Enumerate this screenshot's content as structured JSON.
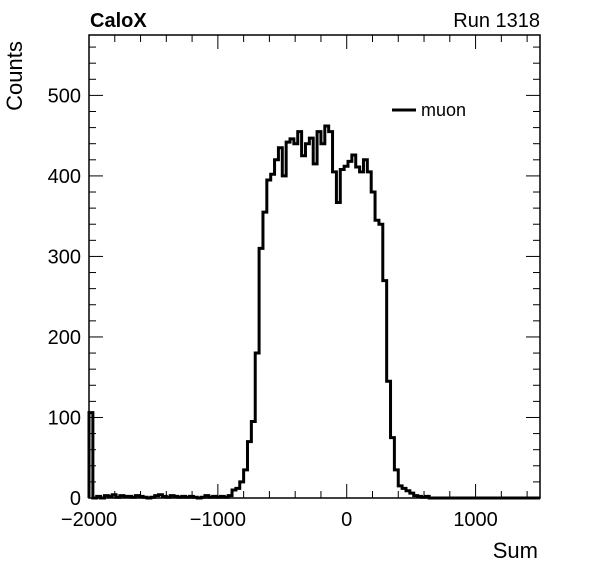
{
  "chart_data": {
    "type": "histogram",
    "header_left": "CaloX",
    "header_right": "Run 1318",
    "xlabel": "Sum",
    "ylabel": "Counts",
    "xlim": [
      -2000,
      1500
    ],
    "ylim": [
      0,
      575
    ],
    "xticks": [
      -2000,
      -1000,
      0,
      1000
    ],
    "xtick_labels": [
      "−2000",
      "−1000",
      "0",
      "1000"
    ],
    "yticks": [
      0,
      100,
      200,
      300,
      400,
      500
    ],
    "ytick_labels": [
      "0",
      "100",
      "200",
      "300",
      "400",
      "500"
    ],
    "legend": {
      "label": "muon",
      "position": "top-right"
    },
    "series": [
      {
        "name": "muon",
        "color": "#000000",
        "bin_edges": [
          -2000,
          -1970,
          -1940,
          -1910,
          -1880,
          -1850,
          -1820,
          -1790,
          -1760,
          -1730,
          -1700,
          -1670,
          -1640,
          -1610,
          -1580,
          -1550,
          -1520,
          -1490,
          -1460,
          -1430,
          -1400,
          -1370,
          -1340,
          -1310,
          -1280,
          -1250,
          -1220,
          -1190,
          -1160,
          -1130,
          -1100,
          -1070,
          -1040,
          -1010,
          -980,
          -950,
          -920,
          -890,
          -860,
          -830,
          -800,
          -770,
          -740,
          -710,
          -680,
          -650,
          -620,
          -590,
          -560,
          -530,
          -500,
          -470,
          -440,
          -410,
          -380,
          -350,
          -320,
          -290,
          -260,
          -230,
          -200,
          -170,
          -140,
          -110,
          -80,
          -50,
          -20,
          10,
          40,
          70,
          100,
          130,
          160,
          190,
          220,
          250,
          280,
          310,
          340,
          370,
          400,
          430,
          460,
          490,
          520,
          550,
          580,
          610,
          640,
          670,
          700,
          730,
          760,
          790,
          820,
          850,
          880,
          910,
          940,
          970,
          1000,
          1030,
          1060,
          1090,
          1120,
          1150,
          1180,
          1210,
          1240,
          1270,
          1300,
          1330,
          1360,
          1390,
          1420,
          1450,
          1480,
          1500
        ],
        "counts": [
          106,
          0,
          2,
          0,
          3,
          2,
          4,
          1,
          3,
          2,
          2,
          1,
          3,
          2,
          1,
          0,
          1,
          3,
          4,
          2,
          1,
          3,
          2,
          1,
          2,
          1,
          2,
          1,
          0,
          1,
          3,
          1,
          2,
          1,
          2,
          1,
          3,
          10,
          12,
          20,
          35,
          70,
          95,
          180,
          310,
          355,
          395,
          402,
          420,
          435,
          400,
          442,
          446,
          440,
          455,
          425,
          440,
          447,
          415,
          455,
          440,
          462,
          455,
          405,
          367,
          408,
          412,
          418,
          426,
          411,
          405,
          420,
          405,
          380,
          345,
          340,
          270,
          145,
          75,
          35,
          15,
          12,
          9,
          6,
          3,
          2,
          1,
          2,
          0,
          0,
          0,
          0,
          0,
          0,
          0,
          0,
          0,
          0,
          0,
          0,
          0,
          0,
          0,
          0,
          0,
          0,
          0,
          0,
          0,
          0,
          0,
          0,
          0,
          0,
          0,
          0,
          0
        ]
      }
    ]
  }
}
